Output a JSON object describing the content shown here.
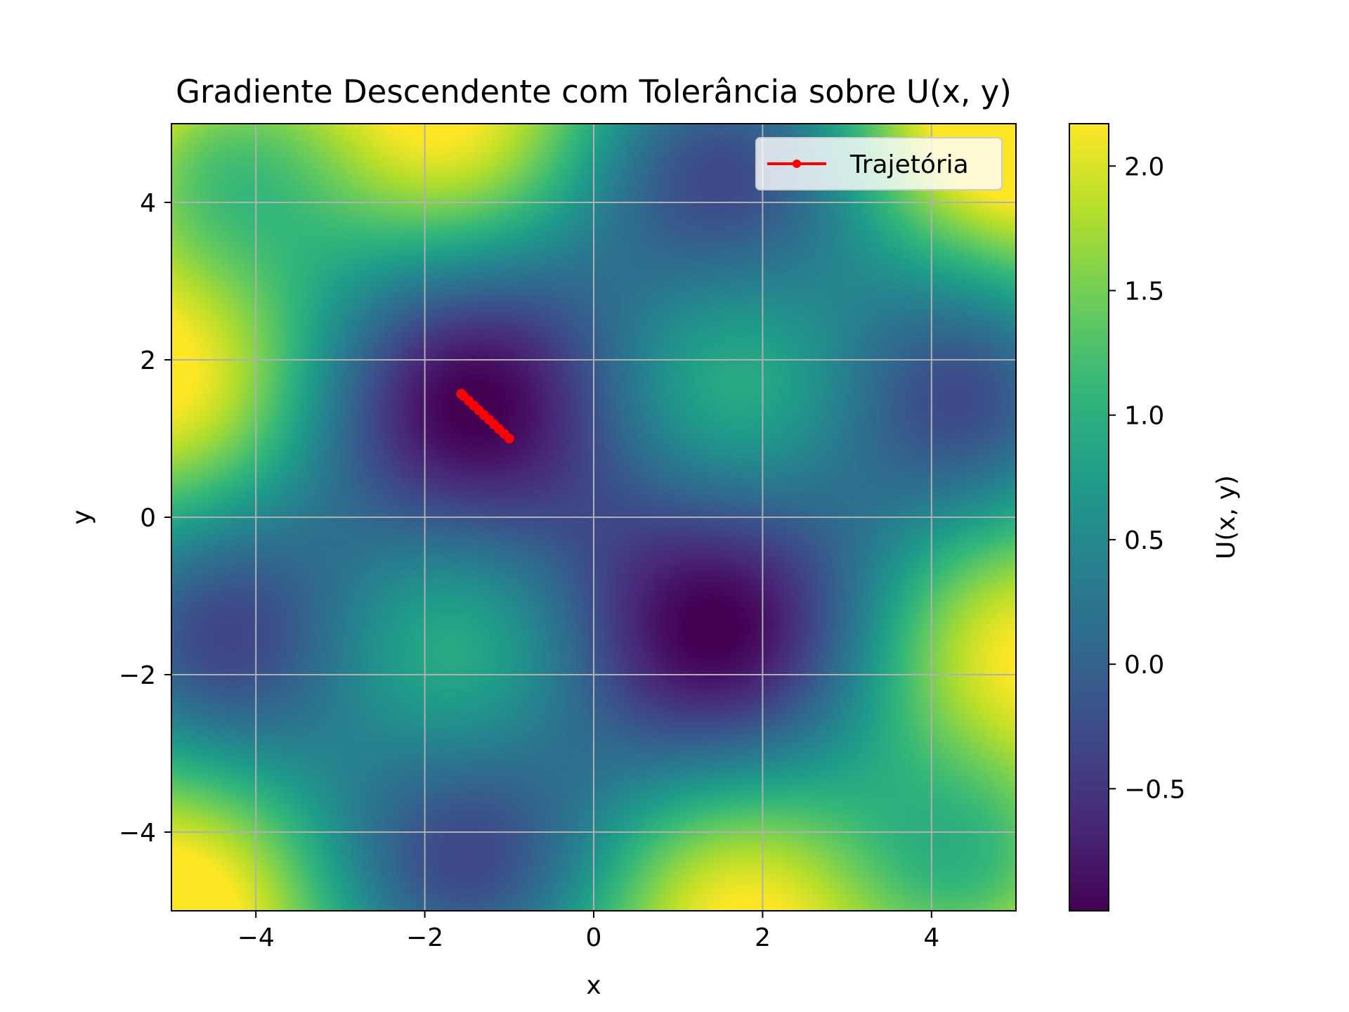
{
  "chart_data": {
    "type": "heatmap",
    "title": "Gradiente Descendente com Tolerância sobre U(x, y)",
    "xlabel": "x",
    "ylabel": "y",
    "xlim": [
      -5,
      5
    ],
    "ylim": [
      -5,
      5
    ],
    "xticks": [
      -4,
      -2,
      0,
      2,
      4
    ],
    "yticks": [
      -4,
      -2,
      0,
      2,
      4
    ],
    "xtick_labels": [
      "−4",
      "−2",
      "0",
      "2",
      "4"
    ],
    "ytick_labels": [
      "−4",
      "−2",
      "0",
      "2",
      "4"
    ],
    "grid": true,
    "colormap": "viridis",
    "surface": "U(x, y)",
    "colorbar": {
      "label": "U(x, y)",
      "range": [
        -0.99,
        2.17
      ],
      "ticks": [
        -0.5,
        0.0,
        0.5,
        1.0,
        1.5,
        2.0
      ],
      "tick_labels": [
        "−0.5",
        "0.0",
        "0.5",
        "1.0",
        "1.5",
        "2.0"
      ]
    },
    "legend": {
      "location": "top-right",
      "entries": [
        "Trajetória"
      ]
    },
    "series": [
      {
        "name": "Trajetória",
        "color": "#ff0000",
        "marker": "circle",
        "x": [
          -1.0,
          -1.06,
          -1.12,
          -1.18,
          -1.24,
          -1.3,
          -1.36,
          -1.42,
          -1.48,
          -1.54,
          -1.57
        ],
        "y": [
          1.0,
          1.06,
          1.12,
          1.18,
          1.24,
          1.3,
          1.36,
          1.42,
          1.48,
          1.54,
          1.57
        ]
      }
    ]
  }
}
